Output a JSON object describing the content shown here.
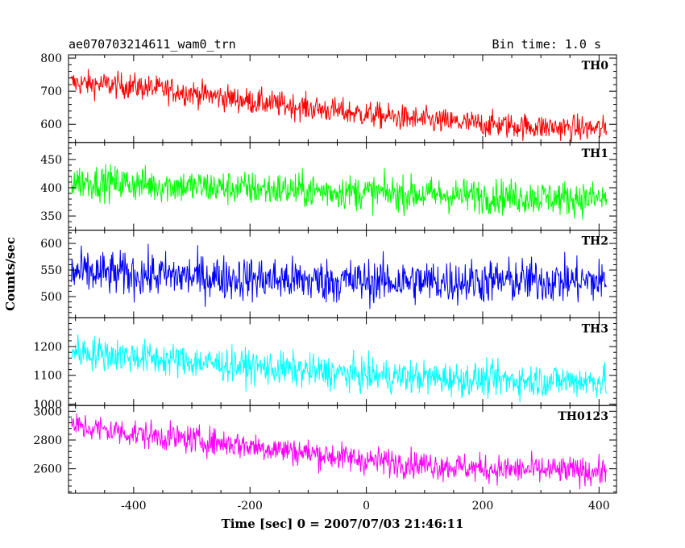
{
  "header": {
    "left_title": "ae070703214611_wam0_trn",
    "right_title": "Bin time: 1.0 s"
  },
  "chart_data": {
    "type": "line",
    "xlabel": "Time [sec] 0 = 2007/07/03 21:46:11",
    "ylabel": "Counts/sec",
    "xlim": [
      -512,
      430
    ],
    "xticks": [
      -400,
      -200,
      0,
      200,
      400
    ],
    "bin_time_s": 1.0,
    "time_range": [
      -507,
      413
    ],
    "panels": [
      {
        "name": "TH0",
        "color": "#ff0000",
        "ylim": [
          545,
          810
        ],
        "yticks": [
          600,
          700,
          800
        ],
        "trend": [
          [
            -507,
            725
          ],
          [
            -400,
            715
          ],
          [
            -300,
            695
          ],
          [
            -200,
            670
          ],
          [
            -100,
            650
          ],
          [
            0,
            630
          ],
          [
            100,
            612
          ],
          [
            200,
            600
          ],
          [
            300,
            592
          ],
          [
            413,
            585
          ]
        ],
        "noise_amplitude": 28
      },
      {
        "name": "TH1",
        "color": "#00ff00",
        "ylim": [
          325,
          480
        ],
        "yticks": [
          350,
          400,
          450
        ],
        "trend": [
          [
            -507,
            412
          ],
          [
            -300,
            402
          ],
          [
            -100,
            395
          ],
          [
            100,
            388
          ],
          [
            300,
            383
          ],
          [
            413,
            380
          ]
        ],
        "noise_amplitude": 22
      },
      {
        "name": "TH2",
        "color": "#0000ff",
        "ylim": [
          460,
          625
        ],
        "yticks": [
          500,
          550,
          600
        ],
        "trend": [
          [
            -507,
            545
          ],
          [
            -300,
            538
          ],
          [
            -100,
            530
          ],
          [
            100,
            528
          ],
          [
            300,
            530
          ],
          [
            413,
            528
          ]
        ],
        "noise_amplitude": 30
      },
      {
        "name": "TH3",
        "color": "#00ffff",
        "ylim": [
          995,
          1300
        ],
        "yticks": [
          1000,
          1100,
          1200
        ],
        "trend": [
          [
            -507,
            1185
          ],
          [
            -400,
            1165
          ],
          [
            -200,
            1130
          ],
          [
            0,
            1100
          ],
          [
            200,
            1085
          ],
          [
            413,
            1080
          ]
        ],
        "noise_amplitude": 42
      },
      {
        "name": "TH0123",
        "color": "#ff00ff",
        "ylim": [
          2430,
          3040
        ],
        "yticks": [
          2600,
          2800,
          3000
        ],
        "trend": [
          [
            -507,
            2900
          ],
          [
            -400,
            2845
          ],
          [
            -200,
            2760
          ],
          [
            0,
            2660
          ],
          [
            200,
            2600
          ],
          [
            413,
            2580
          ]
        ],
        "noise_amplitude": 70
      }
    ]
  }
}
